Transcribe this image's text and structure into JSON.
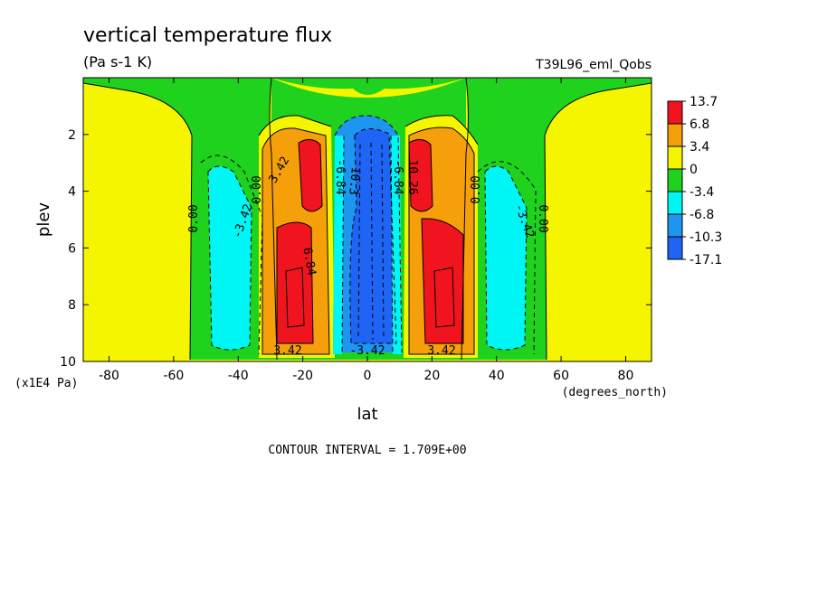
{
  "chart_data": {
    "type": "contour",
    "title": "vertical temperature flux",
    "units": "(Pa s-1 K)",
    "dataset_label": "T39L96_eml_Qobs",
    "xlabel": "lat",
    "ylabel": "plev",
    "x_unit": "(degrees_north)",
    "y_unit": "(x1E4 Pa)",
    "xlim": [
      -88,
      88
    ],
    "ylim": [
      0,
      10
    ],
    "y_inverted": true,
    "x_ticks": [
      "-80",
      "-60",
      "-40",
      "-20",
      "0",
      "20",
      "40",
      "60",
      "80"
    ],
    "y_ticks": [
      "2",
      "4",
      "6",
      "8",
      "10"
    ],
    "contour_interval_text": "CONTOUR INTERVAL = 1.709E+00",
    "colorbar": {
      "labels": [
        "13.7",
        "6.8",
        "3.4",
        "0",
        "-3.4",
        "-6.8",
        "-10.3",
        "-17.1"
      ],
      "colors": [
        "#f0141e",
        "#f5a00a",
        "#f5f500",
        "#1ed21e",
        "#00f5f5",
        "#1e96f0",
        "#1e64f5"
      ]
    },
    "contour_labels": [
      "0.00",
      "-3.42",
      "0.00",
      "3.42",
      "6.84",
      "-6.84",
      "-10.3",
      "-6.84",
      "10.26",
      "0.00",
      "-3.42",
      "0.00",
      "3.42",
      "-3.42",
      "3.42"
    ],
    "color_map": {
      "yellow": "#f5f500",
      "green": "#1ed21e",
      "cyan": "#00f5f5",
      "midblue": "#1e96f0",
      "blue": "#1e64f5",
      "orange": "#f5a00a",
      "red": "#f0141e"
    }
  }
}
